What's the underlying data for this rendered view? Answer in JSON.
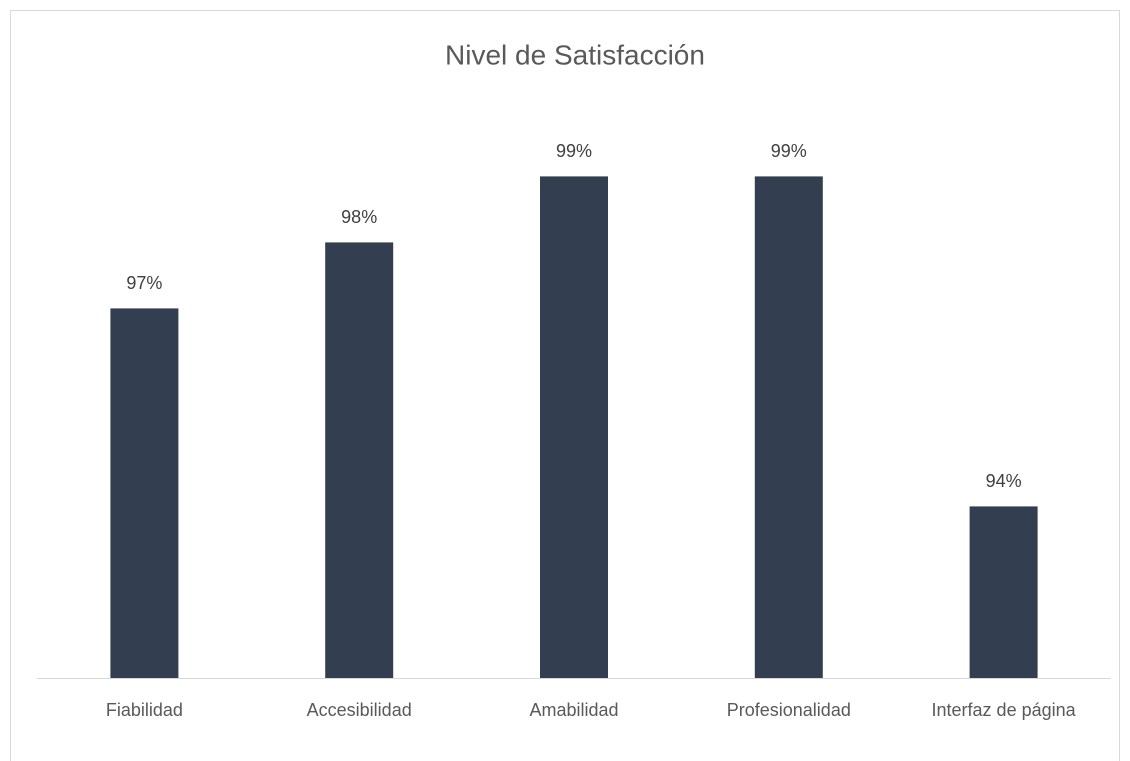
{
  "chart_data": {
    "type": "bar",
    "title": "Nivel de Satisfacción",
    "categories": [
      "Fiabilidad",
      "Accesibilidad",
      "Amabilidad",
      "Profesionalidad",
      "Interfaz de página"
    ],
    "values": [
      97,
      98,
      99,
      99,
      94
    ],
    "value_labels": [
      "97%",
      "98%",
      "99%",
      "99%",
      "94%"
    ],
    "color": "#333f50",
    "ylim": [
      91.4,
      100
    ]
  }
}
